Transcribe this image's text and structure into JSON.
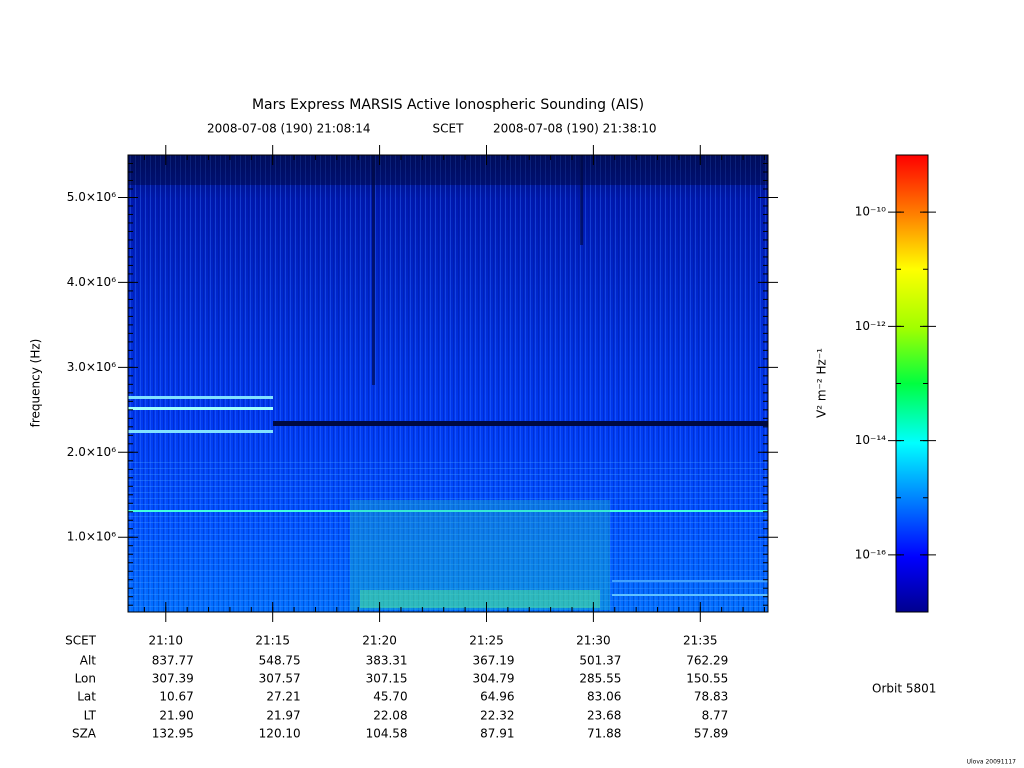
{
  "chart_data": {
    "type": "spectrogram",
    "title": "Mars Express MARSIS Active Ionospheric Sounding (AIS)",
    "subtitle": {
      "start": "2008-07-08 (190) 21:08:14",
      "frame": "SCET",
      "end": "2008-07-08 (190) 21:38:10"
    },
    "y_label": "frequency (Hz)",
    "ylim": [
      120000,
      5500000
    ],
    "yticks": [
      {
        "value": 1000000,
        "label": "1.0×10⁶"
      },
      {
        "value": 2000000,
        "label": "2.0×10⁶"
      },
      {
        "value": 3000000,
        "label": "3.0×10⁶"
      },
      {
        "value": 4000000,
        "label": "4.0×10⁶"
      },
      {
        "value": 5000000,
        "label": "5.0×10⁶"
      }
    ],
    "xlim": [
      1268.233,
      1298.167
    ],
    "xticks": [
      {
        "value": 1270,
        "label": "21:10"
      },
      {
        "value": 1275,
        "label": "21:15"
      },
      {
        "value": 1280,
        "label": "21:20"
      },
      {
        "value": 1285,
        "label": "21:25"
      },
      {
        "value": 1290,
        "label": "21:30"
      },
      {
        "value": 1295,
        "label": "21:35"
      }
    ],
    "colorbar": {
      "label": "V² m⁻² Hz⁻¹",
      "log_scale": true,
      "zlim": [
        1e-17,
        1e-09
      ],
      "ticks": [
        {
          "value": 1e-10,
          "label": "10⁻¹⁰"
        },
        {
          "value": 1e-12,
          "label": "10⁻¹²"
        },
        {
          "value": 1e-14,
          "label": "10⁻¹⁴"
        },
        {
          "value": 1e-16,
          "label": "10⁻¹⁶"
        }
      ]
    },
    "ephemeris": {
      "time_label": "SCET",
      "rows": [
        {
          "label": "Alt",
          "values": [
            "837.77",
            "548.75",
            "383.31",
            "367.19",
            "501.37",
            "762.29"
          ]
        },
        {
          "label": "Lon",
          "values": [
            "307.39",
            "307.57",
            "307.15",
            "304.79",
            "285.55",
            "150.55"
          ]
        },
        {
          "label": "Lat",
          "values": [
            "10.67",
            "27.21",
            "45.70",
            "64.96",
            "83.06",
            "78.83"
          ]
        },
        {
          "label": "LT",
          "values": [
            "21.90",
            "21.97",
            "22.08",
            "22.32",
            "23.68",
            "8.77"
          ]
        },
        {
          "label": "SZA",
          "values": [
            "132.95",
            "120.10",
            "104.58",
            "87.91",
            "71.88",
            "57.89"
          ]
        }
      ]
    },
    "orbit": "Orbit 5801",
    "footer": "Ulova 20091117"
  }
}
